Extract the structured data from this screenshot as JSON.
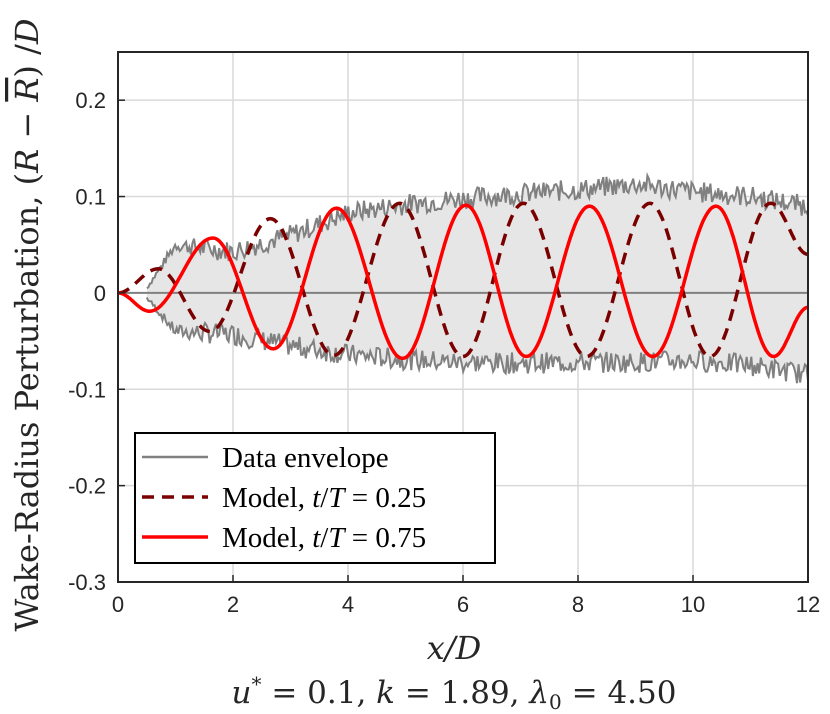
{
  "chart_data": {
    "type": "line",
    "xlabel": "x/D",
    "ylabel": "Wake-Radius Perturbation, (R − R̄) /D",
    "subtitle": "u* = 0.1, k = 1.89, λ0 = 4.50",
    "xlim": [
      0,
      12
    ],
    "ylim": [
      -0.3,
      0.25
    ],
    "xticks": [
      0,
      2,
      4,
      6,
      8,
      10,
      12
    ],
    "yticks": [
      0.2,
      0.1,
      0,
      -0.1,
      -0.2,
      -0.3
    ],
    "ytick_labels": [
      "0.2",
      "0.1",
      "0",
      "-0.1",
      "-0.2",
      "-0.3"
    ],
    "grid": true,
    "legend_position": "bottom-left",
    "series": [
      {
        "name": "Data envelope",
        "style": "gray-band",
        "color": "#808080",
        "fill": "#e6e6e6",
        "x": [
          0.5,
          1,
          2,
          3,
          4,
          5,
          6,
          7,
          8,
          9,
          10,
          11,
          12
        ],
        "upper": [
          0.005,
          0.05,
          0.043,
          0.06,
          0.083,
          0.092,
          0.098,
          0.103,
          0.107,
          0.113,
          0.105,
          0.1,
          0.09
        ],
        "lower": [
          -0.005,
          -0.04,
          -0.043,
          -0.055,
          -0.064,
          -0.069,
          -0.072,
          -0.073,
          -0.072,
          -0.072,
          -0.07,
          -0.075,
          -0.085
        ]
      },
      {
        "name": "Model, t/T = 0.25",
        "style": "dashed",
        "color": "#7a0000",
        "x": [
          0,
          0.7,
          1.6,
          2.65,
          3.75,
          4.9,
          6.0,
          7.05,
          8.15,
          9.25,
          10.3,
          11.35,
          12.0
        ],
        "y": [
          0.0,
          0.025,
          -0.04,
          0.077,
          -0.065,
          0.093,
          -0.066,
          0.093,
          -0.066,
          0.093,
          -0.066,
          0.093,
          0.04
        ]
      },
      {
        "name": "Model, t/T = 0.75",
        "style": "solid",
        "color": "#ff0000",
        "x": [
          0,
          0.55,
          1.65,
          2.7,
          3.8,
          4.95,
          6.05,
          7.1,
          8.2,
          9.3,
          10.4,
          11.4,
          12.0
        ],
        "y": [
          0.0,
          -0.019,
          0.057,
          -0.058,
          0.088,
          -0.068,
          0.091,
          -0.066,
          0.09,
          -0.066,
          0.09,
          -0.066,
          -0.015
        ]
      }
    ]
  }
}
